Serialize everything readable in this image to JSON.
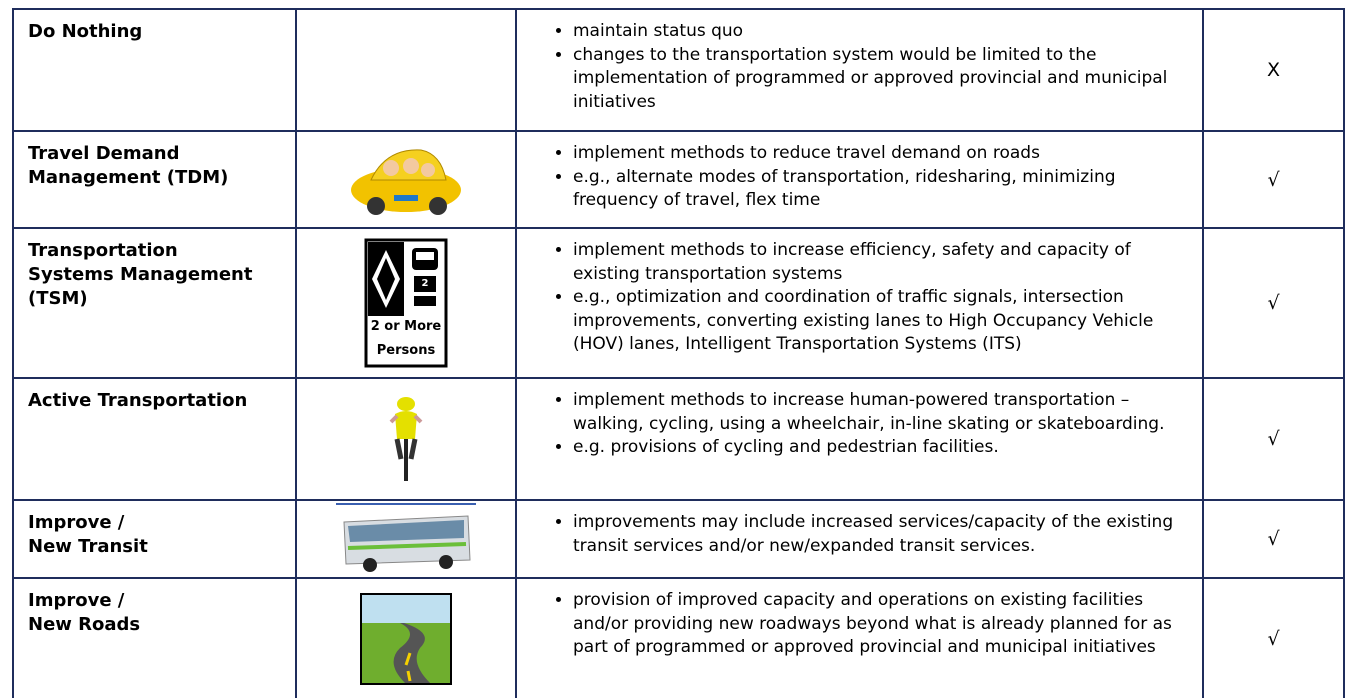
{
  "table": {
    "rows": [
      {
        "name": [
          "Do Nothing"
        ],
        "bullets": [
          "maintain status quo",
          "changes to the transportation system would be limited to the implementation of programmed or approved provincial and municipal initiatives"
        ],
        "mark": "X"
      },
      {
        "name": [
          "Travel Demand",
          "Management (TDM)"
        ],
        "bullets": [
          "implement methods to reduce travel demand on roads",
          "e.g., alternate modes of transportation, ridesharing, minimizing frequency of travel, flex time"
        ],
        "mark": "√"
      },
      {
        "name": [
          "Transportation",
          "Systems Management",
          "(TSM)"
        ],
        "icon_text": [
          "2",
          "2 or More",
          "Persons"
        ],
        "bullets": [
          "implement methods to increase efficiency, safety and capacity of existing transportation systems",
          "e.g., optimization and coordination of traffic signals, intersection improvements, converting existing lanes to High Occupancy Vehicle (HOV) lanes, Intelligent Transportation Systems (ITS)"
        ],
        "mark": "√"
      },
      {
        "name": [
          "Active Transportation"
        ],
        "bullets": [
          "implement methods to increase human-powered transportation – walking, cycling, using a wheelchair, in-line skating or skateboarding.",
          "e.g. provisions of cycling and pedestrian facilities."
        ],
        "mark": "√"
      },
      {
        "name": [
          "Improve /",
          "New Transit"
        ],
        "bullets": [
          "improvements may include increased services/capacity of the existing transit services and/or new/expanded transit services."
        ],
        "mark": "√"
      },
      {
        "name": [
          "Improve /",
          "New Roads"
        ],
        "bullets": [
          "provision of improved capacity and operations on existing facilities and/or providing new roadways beyond what is already planned for as part of programmed or approved provincial and municipal initiatives"
        ],
        "mark": "√"
      }
    ]
  }
}
